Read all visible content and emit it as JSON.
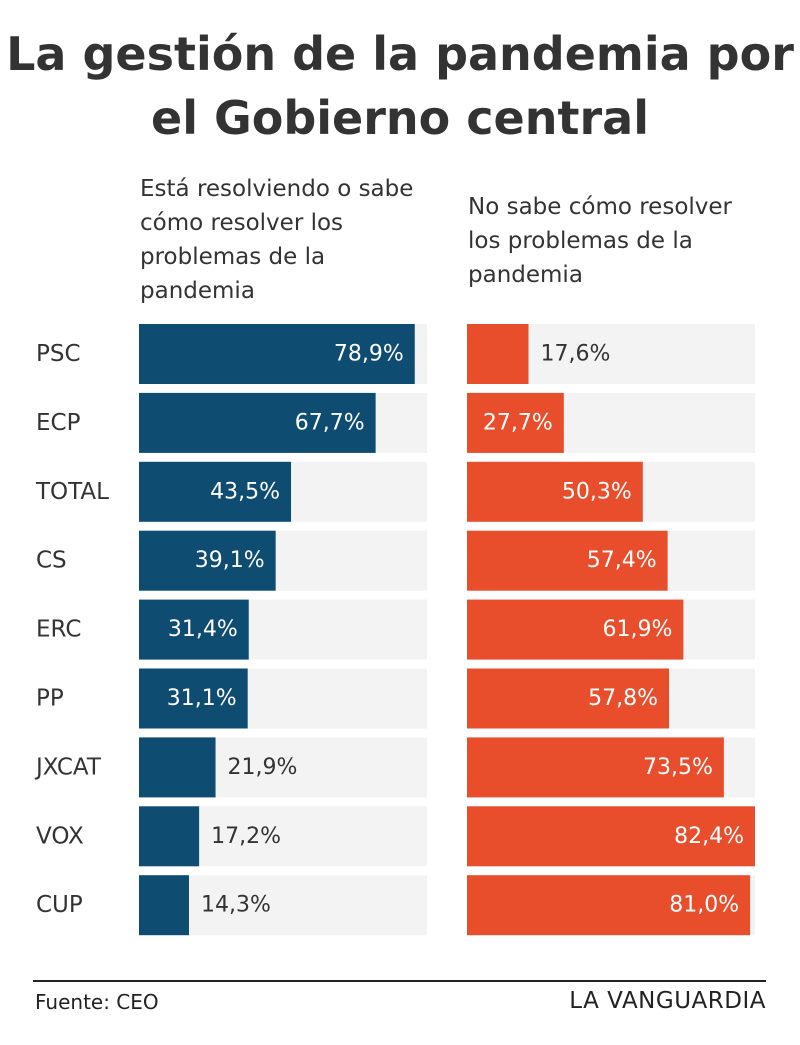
{
  "colors": {
    "left_bar": "#0f4c72",
    "right_bar": "#e84e2c",
    "track": "#f3f3f3",
    "label_inside": "#ffffff",
    "label_outside": "#333333"
  },
  "chart_data": {
    "type": "bar",
    "orientation": "horizontal",
    "title": "La gestión de la pandemia por el Gobierno central",
    "xlim": [
      0,
      82.4
    ],
    "categories": [
      "PSC",
      "ECP",
      "TOTAL",
      "CS",
      "ERC",
      "PP",
      "JXCAT",
      "VOX",
      "CUP"
    ],
    "series": [
      {
        "name": "Está resolviendo o sabe cómo resolver los problemas de la pandemia",
        "values": [
          78.9,
          67.7,
          43.5,
          39.1,
          31.4,
          31.1,
          21.9,
          17.2,
          14.3
        ],
        "labels": [
          "78,9%",
          "67,7%",
          "43,5%",
          "39,1%",
          "31,4%",
          "31,1%",
          "21,9%",
          "17,2%",
          "14,3%"
        ]
      },
      {
        "name": "No sabe cómo resolver los problemas de la pandemia",
        "values": [
          17.6,
          27.7,
          50.3,
          57.4,
          61.9,
          57.8,
          73.5,
          82.4,
          81.0
        ],
        "labels": [
          "17,6%",
          "27,7%",
          "50,3%",
          "57,4%",
          "61,9%",
          "57,8%",
          "73,5%",
          "82,4%",
          "81,0%"
        ]
      }
    ]
  },
  "header": {
    "title": "La gestión de la pandemia por el Gobierno central",
    "left_heading": "Está resolviendo o sabe cómo resolver los problemas de la pandemia",
    "right_heading": "No sabe cómo resolver los problemas de la pandemia"
  },
  "footer": {
    "source": "Fuente: CEO",
    "brand": "LA VANGUARDIA"
  }
}
